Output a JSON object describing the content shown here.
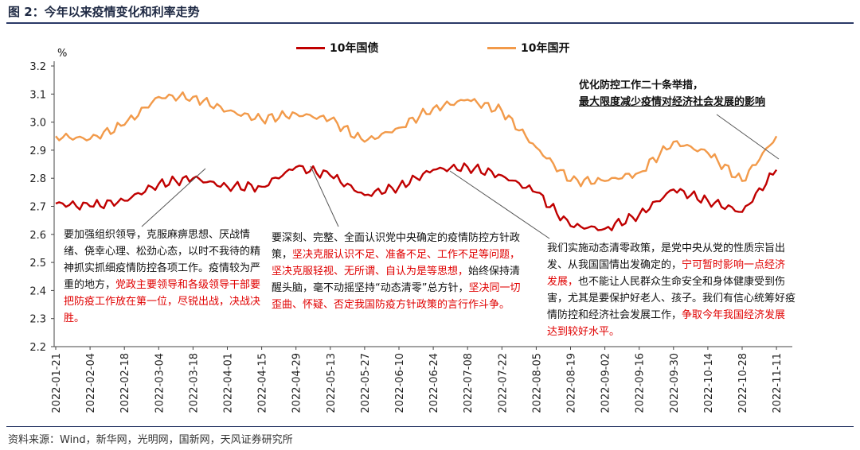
{
  "figure": {
    "title": "图 2：今年以来疫情变化和利率走势",
    "source": "资料来源：Wind，新华网，光明网，国新网，天风证券研究所"
  },
  "colors": {
    "gb": "#c00000",
    "cdb": "#f29a4a",
    "frame": "#2b3a67"
  },
  "chart_data": {
    "type": "line",
    "title": "",
    "xlabel": "",
    "ylabel": "%",
    "ylim": [
      2.2,
      3.2
    ],
    "yticks": [
      "2.2",
      "2.3",
      "2.4",
      "2.5",
      "2.6",
      "2.7",
      "2.8",
      "2.9",
      "3.0",
      "3.1",
      "3.2"
    ],
    "grid": false,
    "legend": "top",
    "categories": [
      "2022-01-21",
      "2022-02-04",
      "2022-02-18",
      "2022-03-04",
      "2022-03-18",
      "2022-04-01",
      "2022-04-15",
      "2022-04-29",
      "2022-05-13",
      "2022-05-27",
      "2022-06-10",
      "2022-06-24",
      "2022-07-08",
      "2022-07-22",
      "2022-08-05",
      "2022-08-19",
      "2022-09-02",
      "2022-09-16",
      "2022-09-30",
      "2022-10-14",
      "2022-10-28",
      "2022-11-11"
    ],
    "series": [
      {
        "name": "10年国债",
        "values": [
          2.71,
          2.7,
          2.72,
          2.78,
          2.8,
          2.77,
          2.77,
          2.84,
          2.81,
          2.74,
          2.77,
          2.83,
          2.84,
          2.81,
          2.75,
          2.63,
          2.62,
          2.67,
          2.76,
          2.72,
          2.68,
          2.83
        ]
      },
      {
        "name": "10年国开",
        "values": [
          2.95,
          2.94,
          2.99,
          3.09,
          3.09,
          3.04,
          3.01,
          3.03,
          3.01,
          2.93,
          2.98,
          3.05,
          3.08,
          3.04,
          2.91,
          2.79,
          2.79,
          2.82,
          2.93,
          2.89,
          2.79,
          2.95
        ]
      }
    ]
  },
  "annotations": {
    "box1": {
      "p1": "要加强组织领导，克服麻痹思想、厌战情绪、侥幸心理、松劲心态，以时不我待的精神抓实抓细疫情防控各项工作。疫情较为严重的地方，",
      "p2": "党政主要领导和各级领导干部要把防疫工作放在第一位，尽锐出战，决战决胜。"
    },
    "box2": {
      "p1": "要深刻、完整、全面认识党中央确定的疫情防控方针政策，",
      "p2": "坚决克服认识不足、准备不足、工作不足等问题，坚决克服轻视、无所谓、自认为是等思想，",
      "p3": "始终保持清醒头脑，毫不动摇坚持“动态清零”总方针，",
      "p4": "坚决同一切歪曲、怀疑、否定我国防疫方针政策的言行作斗争。"
    },
    "box3": {
      "p1": "我们实施动态清零政策，是党中央从党的性质宗旨出发、从我国国情出发确定的，",
      "p2": "宁可暂时影响一点经济发展，",
      "p3": "也不能让人民群众生命安全和身体健康受到伤害，尤其是要保护好老人、孩子。我们有信心统筹好疫情防控和经济社会发展工作，",
      "p4": "争取今年我国经济发展达到较好水平。"
    },
    "callout": {
      "line1": "优化防控工作二十条举措，",
      "line2": "最大限度减少疫情对经济社会发展的影响"
    }
  }
}
